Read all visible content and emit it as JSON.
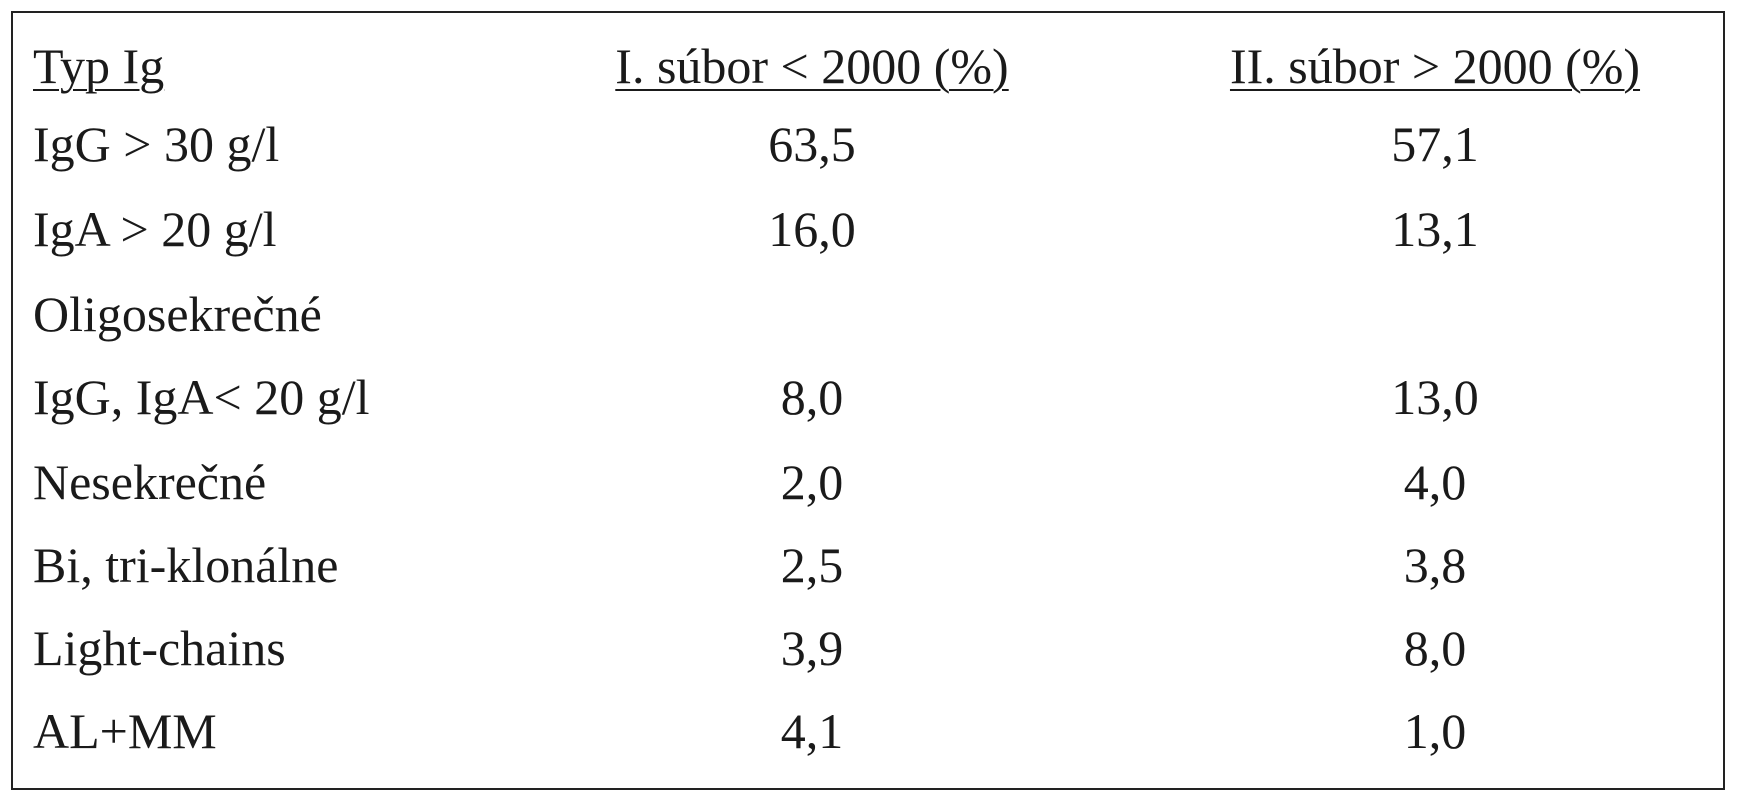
{
  "table": {
    "header": [
      "Typ Ig",
      "I. súbor < 2000 (%)",
      "II. súbor > 2000 (%)"
    ],
    "rows": [
      [
        "IgG > 30 g/l",
        "63,5",
        "57,1"
      ],
      [
        "IgA > 20 g/l",
        "16,0",
        "13,1"
      ],
      [
        "Oligosekrečné"
      ],
      [
        "IgG, IgA< 20 g/l",
        "8,0",
        "13,0"
      ],
      [
        "Nesekrečné",
        "2,0",
        "4,0"
      ],
      [
        "Bi, tri-klonálne",
        "2,5",
        "3,8"
      ],
      [
        "Light-chains",
        "3,9",
        "8,0"
      ],
      [
        "AL+MM",
        "4,1",
        "1,0"
      ]
    ]
  }
}
